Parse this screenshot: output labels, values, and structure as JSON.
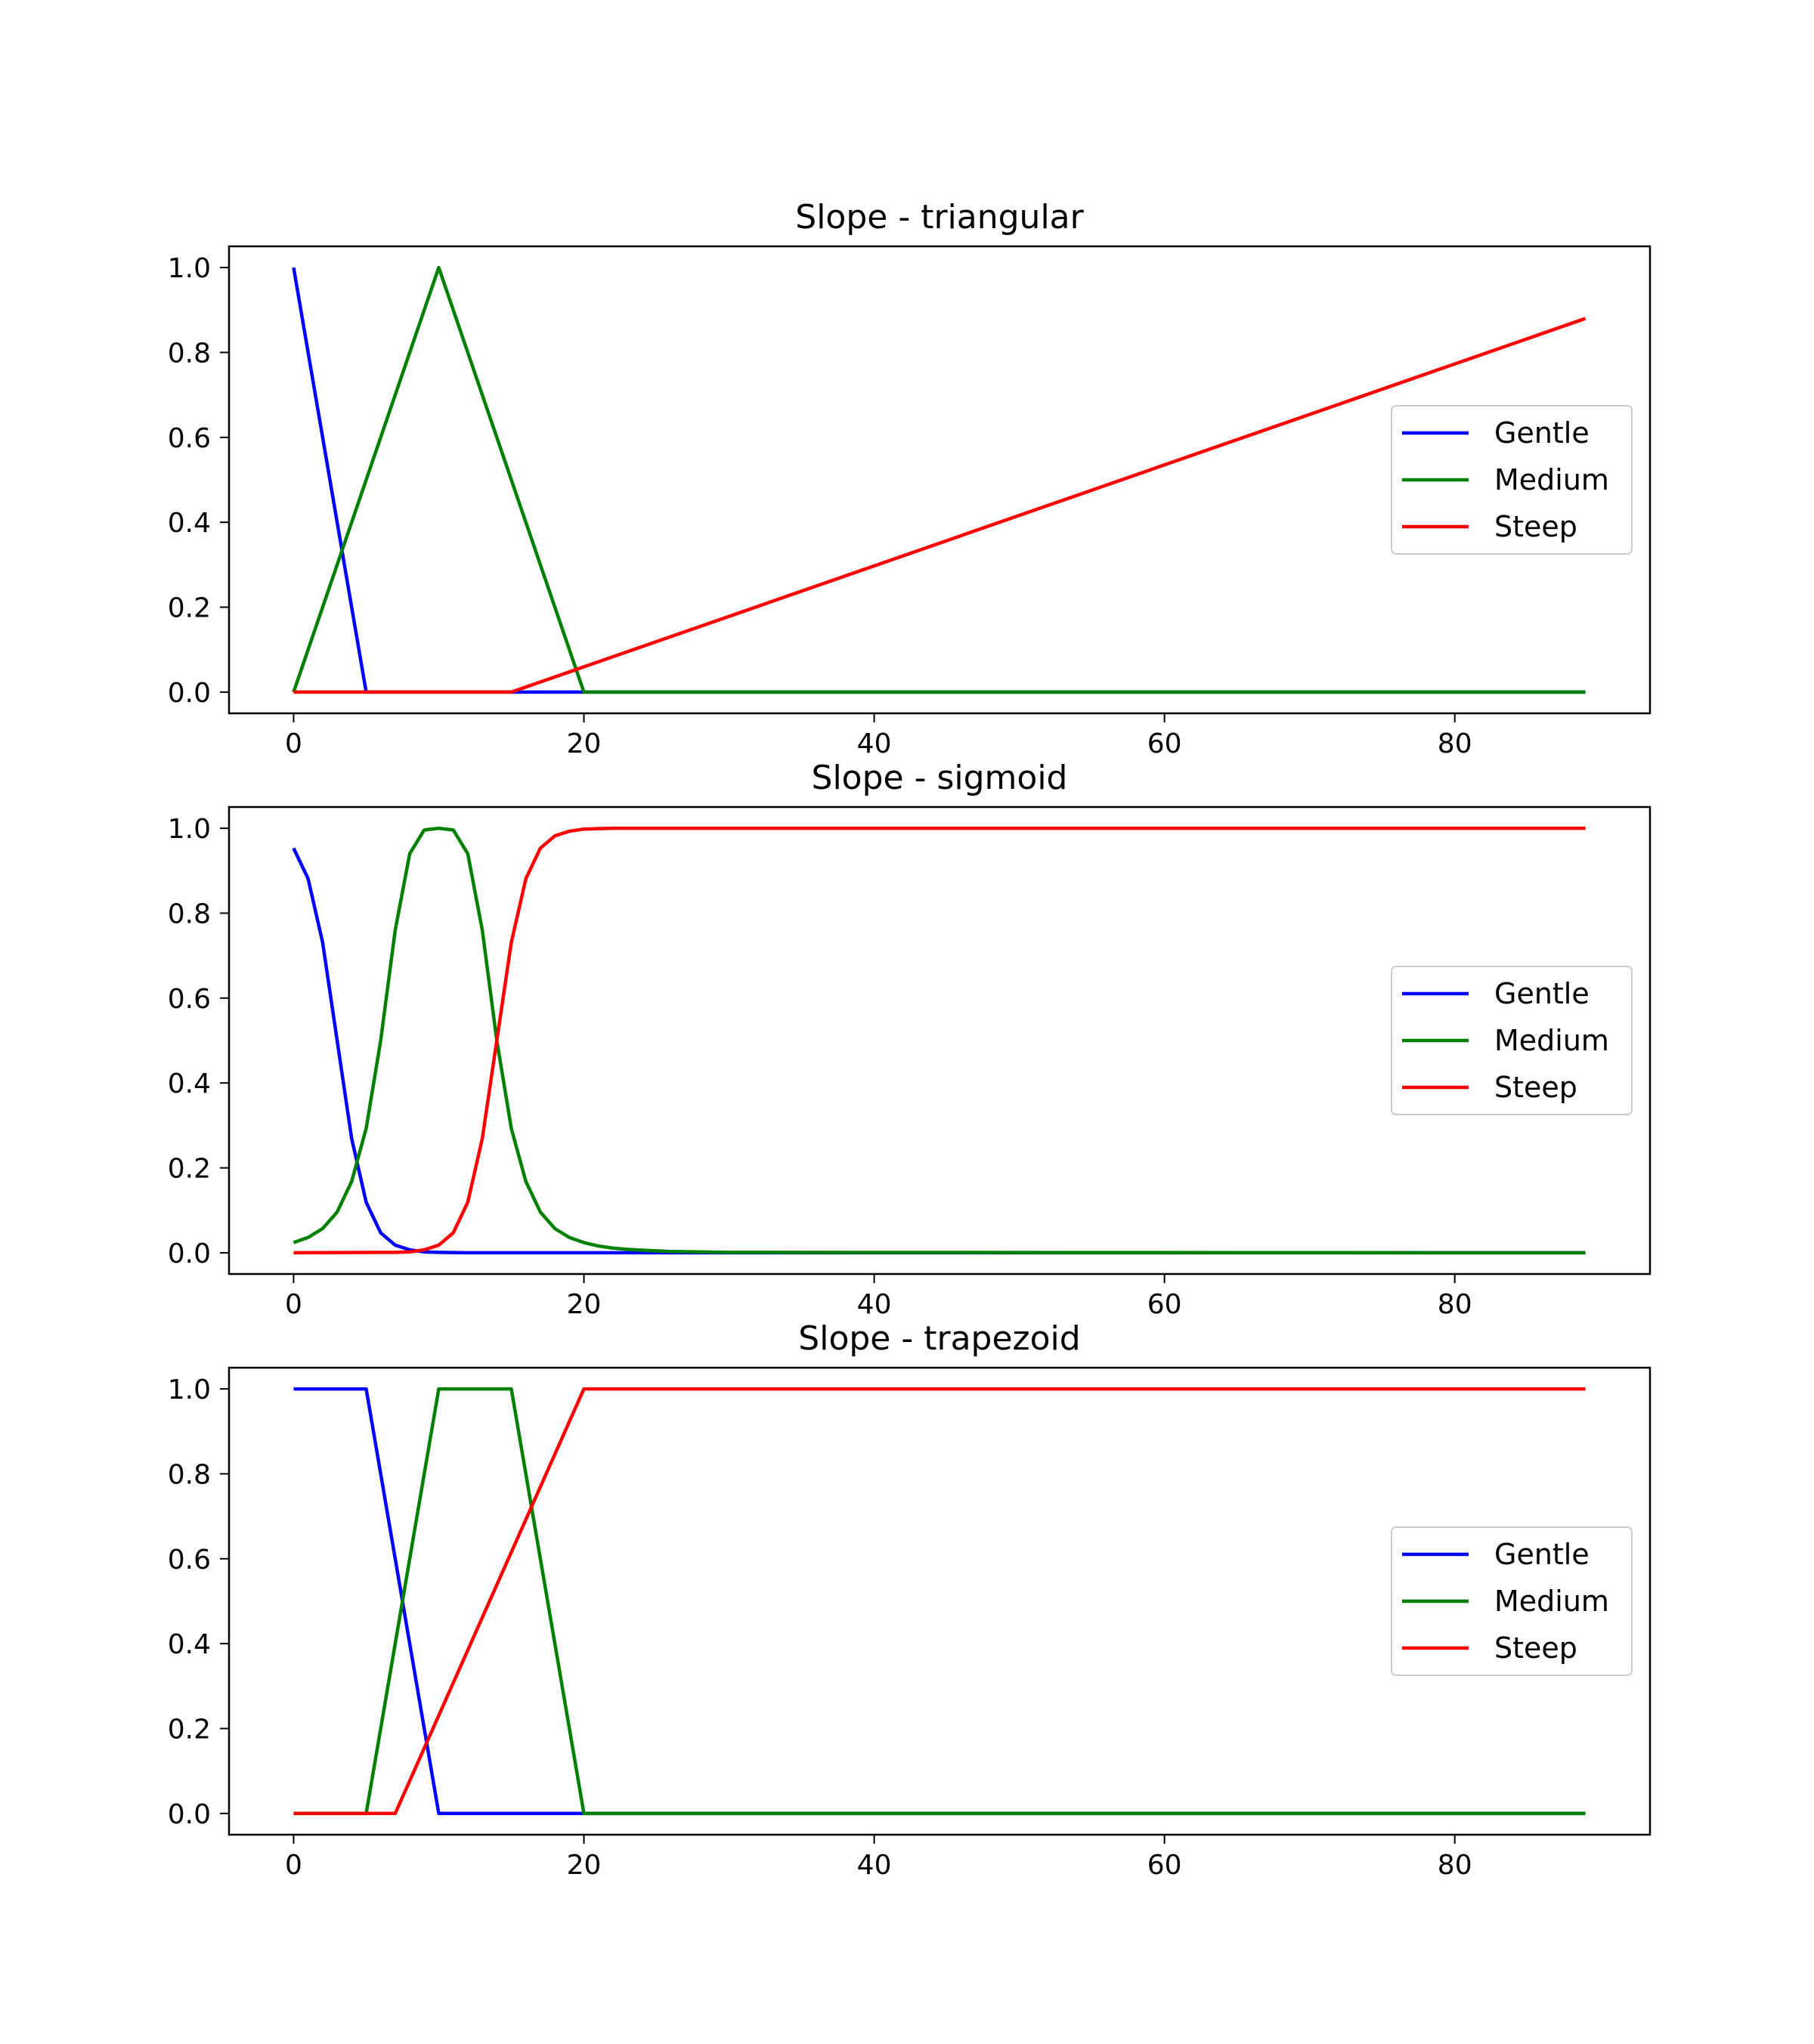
{
  "chart_data": [
    {
      "type": "line",
      "title": "Slope - triangular",
      "xlabel": "",
      "ylabel": "",
      "xlim": [
        -4.45,
        93.45
      ],
      "ylim": [
        -0.05,
        1.05
      ],
      "xticks": [
        0,
        20,
        40,
        60,
        80
      ],
      "yticks": [
        0.0,
        0.2,
        0.4,
        0.6,
        0.8,
        1.0
      ],
      "xtick_labels": [
        "0",
        "20",
        "40",
        "60",
        "80"
      ],
      "ytick_labels": [
        "0.0",
        "0.2",
        "0.4",
        "0.6",
        "0.8",
        "1.0"
      ],
      "grid": false,
      "legend": "center-right",
      "series": [
        {
          "name": "Gentle",
          "color": "#0000ff",
          "x": [
            0,
            5,
            89
          ],
          "y": [
            1.0,
            0.0,
            0.0
          ]
        },
        {
          "name": "Medium",
          "color": "#008000",
          "x": [
            0,
            10,
            20,
            89
          ],
          "y": [
            0.0,
            1.0,
            0.0,
            0.0
          ]
        },
        {
          "name": "Steep",
          "color": "#ff0000",
          "x": [
            0,
            15,
            89
          ],
          "y": [
            0.0,
            0.0,
            0.88
          ]
        }
      ]
    },
    {
      "type": "line",
      "title": "Slope - sigmoid",
      "xlabel": "",
      "ylabel": "",
      "xlim": [
        -4.45,
        93.45
      ],
      "ylim": [
        -0.05,
        1.05
      ],
      "xticks": [
        0,
        20,
        40,
        60,
        80
      ],
      "yticks": [
        0.0,
        0.2,
        0.4,
        0.6,
        0.8,
        1.0
      ],
      "xtick_labels": [
        "0",
        "20",
        "40",
        "60",
        "80"
      ],
      "ytick_labels": [
        "0.0",
        "0.2",
        "0.4",
        "0.6",
        "0.8",
        "1.0"
      ],
      "grid": false,
      "legend": "center-right",
      "series": [
        {
          "name": "Gentle",
          "color": "#0000ff",
          "x": [
            0,
            1,
            2,
            3,
            4,
            5,
            6,
            7,
            8,
            9,
            10,
            12,
            89
          ],
          "y": [
            0.953,
            0.881,
            0.731,
            0.5,
            0.269,
            0.119,
            0.047,
            0.018,
            0.007,
            0.002,
            0.001,
            0.0,
            0.0
          ]
        },
        {
          "name": "Medium",
          "color": "#008000",
          "x": [
            0,
            1,
            2,
            3,
            4,
            5,
            6,
            7,
            8,
            9,
            10,
            11,
            12,
            13,
            14,
            15,
            16,
            17,
            18,
            19,
            20,
            21,
            22,
            23,
            24,
            26,
            30,
            89
          ],
          "y": [
            0.024,
            0.036,
            0.057,
            0.096,
            0.168,
            0.293,
            0.5,
            0.76,
            0.94,
            0.996,
            1.0,
            0.996,
            0.94,
            0.76,
            0.5,
            0.293,
            0.168,
            0.096,
            0.057,
            0.036,
            0.024,
            0.016,
            0.011,
            0.008,
            0.006,
            0.003,
            0.001,
            0.0
          ]
        },
        {
          "name": "Steep",
          "color": "#ff0000",
          "x": [
            0,
            7,
            8,
            9,
            10,
            11,
            12,
            13,
            14,
            15,
            16,
            17,
            18,
            19,
            20,
            21,
            22,
            24,
            89
          ],
          "y": [
            0.0,
            0.001,
            0.002,
            0.007,
            0.018,
            0.047,
            0.119,
            0.269,
            0.5,
            0.731,
            0.881,
            0.953,
            0.982,
            0.993,
            0.998,
            0.999,
            1.0,
            1.0,
            1.0
          ]
        }
      ]
    },
    {
      "type": "line",
      "title": "Slope - trapezoid",
      "xlabel": "",
      "ylabel": "",
      "xlim": [
        -4.45,
        93.45
      ],
      "ylim": [
        -0.05,
        1.05
      ],
      "xticks": [
        0,
        20,
        40,
        60,
        80
      ],
      "yticks": [
        0.0,
        0.2,
        0.4,
        0.6,
        0.8,
        1.0
      ],
      "xtick_labels": [
        "0",
        "20",
        "40",
        "60",
        "80"
      ],
      "ytick_labels": [
        "0.0",
        "0.2",
        "0.4",
        "0.6",
        "0.8",
        "1.0"
      ],
      "grid": false,
      "legend": "center-right",
      "series": [
        {
          "name": "Gentle",
          "color": "#0000ff",
          "x": [
            0,
            5,
            10,
            89
          ],
          "y": [
            1.0,
            1.0,
            0.0,
            0.0
          ]
        },
        {
          "name": "Medium",
          "color": "#008000",
          "x": [
            0,
            5,
            10,
            15,
            20,
            89
          ],
          "y": [
            0.0,
            0.0,
            1.0,
            1.0,
            0.0,
            0.0
          ]
        },
        {
          "name": "Steep",
          "color": "#ff0000",
          "x": [
            0,
            7,
            20,
            89
          ],
          "y": [
            0.0,
            0.0,
            1.0,
            1.0
          ]
        }
      ]
    }
  ]
}
